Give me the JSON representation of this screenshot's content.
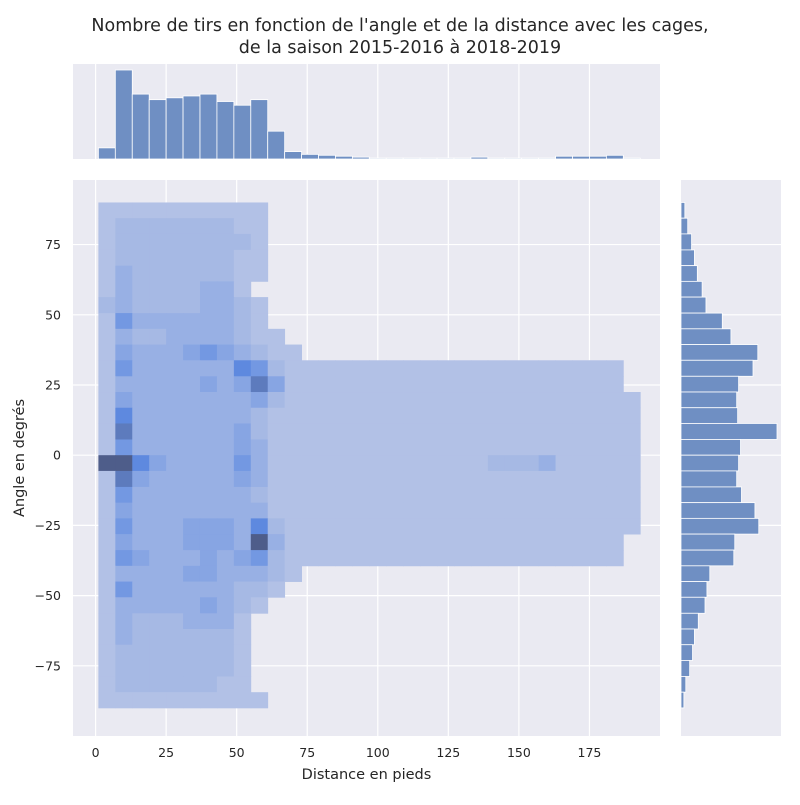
{
  "chart_data": {
    "type": "heatmap",
    "title": "Nombre de tirs en fonction de l'angle et de la distance avec les cages,\nde la saison 2015-2016 à 2018-2019",
    "xlabel": "Distance en pieds",
    "ylabel": "Angle en degrés",
    "xlim": [
      -8,
      200
    ],
    "ylim": [
      -100,
      98
    ],
    "xticks": [
      0,
      25,
      50,
      75,
      100,
      125,
      150,
      175
    ],
    "yticks": [
      -75,
      -50,
      -25,
      0,
      25,
      50,
      75
    ],
    "grid": true,
    "bin_x_edges": [
      1,
      7,
      13,
      19,
      25,
      31,
      37,
      43,
      49,
      55,
      61,
      67,
      73,
      79,
      85,
      91,
      97,
      103,
      109,
      115,
      121,
      127,
      133,
      139,
      145,
      151,
      157,
      163,
      169,
      175,
      181,
      187,
      193
    ],
    "bin_y_edges": [
      -90,
      -84.4,
      -78.8,
      -73.1,
      -67.5,
      -61.9,
      -56.3,
      -50.6,
      -45,
      -39.4,
      -33.8,
      -28.1,
      -22.5,
      -16.9,
      -11.3,
      -5.6,
      0,
      5.6,
      11.3,
      16.9,
      22.5,
      28.1,
      33.8,
      39.4,
      45,
      50.6,
      56.3,
      61.9,
      67.5,
      73.1,
      78.8,
      84.4,
      90
    ],
    "heatmap_counts_angle_desc_by_distance": [
      [
        1,
        1,
        1,
        1,
        1,
        1,
        1,
        1,
        1,
        1,
        0,
        0,
        0,
        0,
        0,
        0,
        0,
        0,
        0,
        0,
        0,
        0,
        0,
        0,
        0,
        0,
        0,
        0,
        0,
        0,
        0,
        0
      ],
      [
        1,
        2,
        2,
        2,
        2,
        2,
        2,
        2,
        1,
        1,
        0,
        0,
        0,
        0,
        0,
        0,
        0,
        0,
        0,
        0,
        0,
        0,
        0,
        0,
        0,
        0,
        0,
        0,
        0,
        0,
        0,
        0
      ],
      [
        1,
        2,
        2,
        2,
        2,
        2,
        2,
        2,
        2,
        1,
        0,
        0,
        0,
        0,
        0,
        0,
        0,
        0,
        0,
        0,
        0,
        0,
        0,
        0,
        0,
        0,
        0,
        0,
        0,
        0,
        0,
        0
      ],
      [
        1,
        2,
        2,
        2,
        2,
        2,
        2,
        2,
        1,
        1,
        0,
        0,
        0,
        0,
        0,
        0,
        0,
        0,
        0,
        0,
        0,
        0,
        0,
        0,
        0,
        0,
        0,
        0,
        0,
        0,
        0,
        0
      ],
      [
        1,
        3,
        2,
        2,
        2,
        2,
        2,
        2,
        1,
        1,
        0,
        0,
        0,
        0,
        0,
        0,
        0,
        0,
        0,
        0,
        0,
        0,
        0,
        0,
        0,
        0,
        0,
        0,
        0,
        0,
        0,
        0
      ],
      [
        1,
        3,
        2,
        2,
        2,
        2,
        3,
        3,
        1,
        0,
        0,
        0,
        0,
        0,
        0,
        0,
        0,
        0,
        0,
        0,
        0,
        0,
        0,
        0,
        0,
        0,
        0,
        0,
        0,
        0,
        0,
        0
      ],
      [
        2,
        3,
        2,
        2,
        2,
        2,
        3,
        3,
        2,
        1,
        0,
        0,
        0,
        0,
        0,
        0,
        0,
        0,
        0,
        0,
        0,
        0,
        0,
        0,
        0,
        0,
        0,
        0,
        0,
        0,
        0,
        0
      ],
      [
        1,
        5,
        3,
        3,
        3,
        3,
        3,
        3,
        2,
        1,
        0,
        0,
        0,
        0,
        0,
        0,
        0,
        0,
        0,
        0,
        0,
        0,
        0,
        0,
        0,
        0,
        0,
        0,
        0,
        0,
        0,
        0
      ],
      [
        1,
        3,
        2,
        2,
        3,
        3,
        3,
        3,
        2,
        1,
        1,
        0,
        0,
        0,
        0,
        0,
        0,
        0,
        0,
        0,
        0,
        0,
        0,
        0,
        0,
        0,
        0,
        0,
        0,
        0,
        0,
        0
      ],
      [
        1,
        4,
        3,
        3,
        3,
        4,
        5,
        4,
        3,
        2,
        1,
        1,
        0,
        0,
        0,
        0,
        0,
        0,
        0,
        0,
        0,
        0,
        0,
        0,
        0,
        0,
        0,
        0,
        0,
        0,
        0,
        0
      ],
      [
        1,
        5,
        3,
        3,
        3,
        3,
        3,
        3,
        6,
        5,
        2,
        1,
        1,
        1,
        1,
        1,
        1,
        1,
        1,
        1,
        1,
        1,
        1,
        1,
        1,
        1,
        1,
        1,
        1,
        1,
        1,
        0
      ],
      [
        1,
        3,
        3,
        3,
        3,
        3,
        4,
        3,
        4,
        7,
        4,
        1,
        1,
        1,
        1,
        1,
        1,
        1,
        1,
        1,
        1,
        1,
        1,
        1,
        1,
        1,
        1,
        1,
        1,
        1,
        1,
        0
      ],
      [
        1,
        4,
        3,
        3,
        3,
        3,
        3,
        3,
        3,
        4,
        2,
        1,
        1,
        1,
        1,
        1,
        1,
        1,
        1,
        1,
        1,
        1,
        1,
        1,
        1,
        1,
        1,
        1,
        1,
        1,
        1,
        1
      ],
      [
        1,
        6,
        3,
        3,
        3,
        3,
        3,
        3,
        3,
        2,
        1,
        1,
        1,
        1,
        1,
        1,
        1,
        1,
        1,
        1,
        1,
        1,
        1,
        1,
        1,
        1,
        1,
        1,
        1,
        1,
        1,
        1
      ],
      [
        1,
        7,
        3,
        3,
        3,
        3,
        3,
        3,
        4,
        2,
        1,
        1,
        1,
        1,
        1,
        1,
        1,
        1,
        1,
        1,
        1,
        1,
        1,
        1,
        1,
        1,
        1,
        1,
        1,
        1,
        1,
        1
      ],
      [
        1,
        5,
        3,
        3,
        3,
        3,
        3,
        3,
        4,
        3,
        1,
        1,
        1,
        1,
        1,
        1,
        1,
        1,
        1,
        1,
        1,
        1,
        1,
        1,
        1,
        1,
        1,
        1,
        1,
        1,
        1,
        1
      ],
      [
        8,
        8,
        6,
        4,
        3,
        3,
        3,
        3,
        5,
        3,
        1,
        1,
        1,
        1,
        1,
        1,
        1,
        1,
        1,
        1,
        1,
        1,
        1,
        2,
        2,
        2,
        3,
        1,
        1,
        1,
        1,
        1
      ],
      [
        1,
        7,
        4,
        3,
        3,
        3,
        3,
        3,
        4,
        3,
        1,
        1,
        1,
        1,
        1,
        1,
        1,
        1,
        1,
        1,
        1,
        1,
        1,
        1,
        1,
        1,
        1,
        1,
        1,
        1,
        1,
        1
      ],
      [
        1,
        5,
        3,
        3,
        3,
        3,
        3,
        3,
        3,
        2,
        1,
        1,
        1,
        1,
        1,
        1,
        1,
        1,
        1,
        1,
        1,
        1,
        1,
        1,
        1,
        1,
        1,
        1,
        1,
        1,
        1,
        1
      ],
      [
        1,
        4,
        3,
        3,
        3,
        3,
        3,
        3,
        3,
        3,
        1,
        1,
        1,
        1,
        1,
        1,
        1,
        1,
        1,
        1,
        1,
        1,
        1,
        1,
        1,
        1,
        1,
        1,
        1,
        1,
        1,
        1
      ],
      [
        1,
        5,
        3,
        3,
        3,
        4,
        4,
        4,
        3,
        6,
        2,
        1,
        1,
        1,
        1,
        1,
        1,
        1,
        1,
        1,
        1,
        1,
        1,
        1,
        1,
        1,
        1,
        1,
        1,
        1,
        1,
        1
      ],
      [
        1,
        4,
        3,
        3,
        3,
        4,
        4,
        4,
        3,
        8,
        3,
        1,
        1,
        1,
        1,
        1,
        1,
        1,
        1,
        1,
        1,
        1,
        1,
        1,
        1,
        1,
        1,
        1,
        1,
        1,
        1,
        0
      ],
      [
        1,
        5,
        4,
        3,
        3,
        3,
        4,
        3,
        4,
        5,
        2,
        1,
        1,
        1,
        1,
        1,
        1,
        1,
        1,
        1,
        1,
        1,
        1,
        1,
        1,
        1,
        1,
        1,
        1,
        1,
        1,
        0
      ],
      [
        1,
        3,
        3,
        3,
        3,
        4,
        4,
        3,
        3,
        3,
        2,
        1,
        0,
        0,
        0,
        0,
        0,
        0,
        0,
        0,
        0,
        0,
        0,
        0,
        0,
        0,
        0,
        0,
        0,
        0,
        0,
        0
      ],
      [
        1,
        5,
        3,
        3,
        3,
        3,
        3,
        3,
        2,
        2,
        1,
        0,
        0,
        0,
        0,
        0,
        0,
        0,
        0,
        0,
        0,
        0,
        0,
        0,
        0,
        0,
        0,
        0,
        0,
        0,
        0,
        0
      ],
      [
        1,
        3,
        3,
        3,
        3,
        3,
        4,
        3,
        2,
        1,
        0,
        0,
        0,
        0,
        0,
        0,
        0,
        0,
        0,
        0,
        0,
        0,
        0,
        0,
        0,
        0,
        0,
        0,
        0,
        0,
        0,
        0
      ],
      [
        1,
        3,
        2,
        2,
        2,
        3,
        3,
        3,
        1,
        0,
        0,
        0,
        0,
        0,
        0,
        0,
        0,
        0,
        0,
        0,
        0,
        0,
        0,
        0,
        0,
        0,
        0,
        0,
        0,
        0,
        0,
        0
      ],
      [
        1,
        3,
        2,
        2,
        2,
        2,
        2,
        2,
        1,
        0,
        0,
        0,
        0,
        0,
        0,
        0,
        0,
        0,
        0,
        0,
        0,
        0,
        0,
        0,
        0,
        0,
        0,
        0,
        0,
        0,
        0,
        0
      ],
      [
        1,
        2,
        2,
        2,
        2,
        2,
        2,
        2,
        1,
        0,
        0,
        0,
        0,
        0,
        0,
        0,
        0,
        0,
        0,
        0,
        0,
        0,
        0,
        0,
        0,
        0,
        0,
        0,
        0,
        0,
        0,
        0
      ],
      [
        1,
        2,
        2,
        2,
        2,
        2,
        2,
        2,
        1,
        0,
        0,
        0,
        0,
        0,
        0,
        0,
        0,
        0,
        0,
        0,
        0,
        0,
        0,
        0,
        0,
        0,
        0,
        0,
        0,
        0,
        0,
        0
      ],
      [
        1,
        2,
        2,
        2,
        2,
        2,
        2,
        1,
        1,
        0,
        0,
        0,
        0,
        0,
        0,
        0,
        0,
        0,
        0,
        0,
        0,
        0,
        0,
        0,
        0,
        0,
        0,
        0,
        0,
        0,
        0,
        0
      ],
      [
        1,
        1,
        1,
        1,
        1,
        1,
        1,
        1,
        1,
        1,
        0,
        0,
        0,
        0,
        0,
        0,
        0,
        0,
        0,
        0,
        0,
        0,
        0,
        0,
        0,
        0,
        0,
        0,
        0,
        0,
        0,
        0
      ]
    ],
    "top_histogram": {
      "bin_edges": [
        1,
        7,
        13,
        19,
        25,
        31,
        37,
        43,
        49,
        55,
        61,
        67,
        73,
        79,
        85,
        91,
        97,
        103,
        109,
        115,
        121,
        127,
        133,
        139,
        145,
        151,
        157,
        163,
        169,
        175,
        181,
        187,
        193
      ],
      "values": [
        12,
        96,
        70,
        64,
        66,
        68,
        70,
        62,
        58,
        64,
        30,
        8,
        5,
        4,
        3,
        2,
        1,
        1,
        1,
        1,
        1,
        1,
        2,
        1,
        1,
        1,
        1,
        3,
        3,
        3,
        4,
        1
      ]
    },
    "right_histogram": {
      "bin_edges_angle_desc": [
        90,
        84.4,
        78.8,
        73.1,
        67.5,
        61.9,
        56.3,
        50.6,
        45,
        39.4,
        33.8,
        28.1,
        22.5,
        16.9,
        11.3,
        5.6,
        0,
        -5.6,
        -11.3,
        -16.9,
        -22.5,
        -28.1,
        -33.8,
        -39.4,
        -45,
        -50.6,
        -56.3,
        -61.9,
        -67.5,
        -73.1,
        -78.8,
        -84.4,
        -90
      ],
      "values": [
        4,
        7,
        11,
        14,
        17,
        22,
        26,
        43,
        52,
        80,
        75,
        60,
        58,
        59,
        100,
        62,
        60,
        58,
        63,
        77,
        81,
        56,
        55,
        30,
        27,
        25,
        18,
        14,
        12,
        9,
        5,
        3
      ]
    },
    "colors": {
      "grid_bg": "#eaeaf2",
      "grid_line": "#ffffff",
      "bar_fill": "#6f8fc3",
      "heat_levels": [
        "#b2c1e6",
        "#a6b9e4",
        "#98b0e4",
        "#87a5e3",
        "#7398e2",
        "#5e89df",
        "#5d7bbd",
        "#4e5d8a",
        "#3d4666"
      ]
    }
  }
}
